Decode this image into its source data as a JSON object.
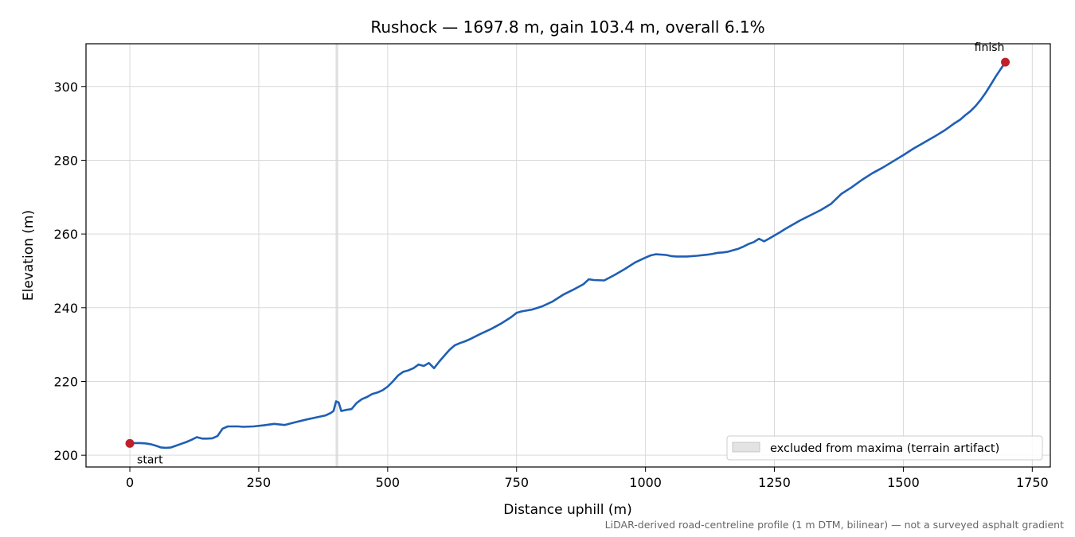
{
  "chart_data": {
    "type": "line",
    "title": "Rushock — 1697.8 m, gain 103.4 m, overall 6.1%",
    "xlabel": "Distance uphill (m)",
    "ylabel": "Elevation (m)",
    "xlim": [
      -85,
      1785
    ],
    "ylim": [
      196.8,
      311.6
    ],
    "xticks": [
      0,
      250,
      500,
      750,
      1000,
      1250,
      1500,
      1750
    ],
    "yticks": [
      200,
      220,
      240,
      260,
      280,
      300
    ],
    "grid": true,
    "line_color": "#1f5fb4",
    "marker_color": "#c0202a",
    "series": [
      {
        "x": [
          0,
          10,
          20,
          30,
          40,
          50,
          60,
          70,
          80,
          90,
          100,
          110,
          120,
          130,
          140,
          150,
          160,
          170,
          180,
          190,
          200,
          210,
          220,
          240,
          260,
          280,
          300,
          320,
          340,
          360,
          380,
          390,
          395,
          400,
          405,
          410,
          420,
          430,
          440,
          450,
          460,
          470,
          480,
          490,
          500,
          510,
          520,
          530,
          540,
          550,
          560,
          570,
          580,
          590,
          600,
          610,
          620,
          630,
          640,
          650,
          660,
          680,
          700,
          720,
          740,
          750,
          760,
          780,
          800,
          820,
          840,
          860,
          880,
          890,
          900,
          920,
          940,
          960,
          980,
          1000,
          1010,
          1020,
          1040,
          1050,
          1060,
          1080,
          1100,
          1120,
          1130,
          1140,
          1150,
          1160,
          1170,
          1180,
          1190,
          1200,
          1210,
          1220,
          1230,
          1240,
          1250,
          1260,
          1270,
          1280,
          1300,
          1320,
          1340,
          1360,
          1380,
          1400,
          1420,
          1440,
          1460,
          1480,
          1500,
          1520,
          1540,
          1560,
          1580,
          1600,
          1610,
          1620,
          1630,
          1640,
          1650,
          1660,
          1670,
          1680,
          1690,
          1697.8
        ],
        "y": [
          203.2,
          203.3,
          203.3,
          203.2,
          203.0,
          202.6,
          202.1,
          202.0,
          202.1,
          202.6,
          203.1,
          203.6,
          204.2,
          204.9,
          204.5,
          204.5,
          204.6,
          205.2,
          207.2,
          207.8,
          207.8,
          207.8,
          207.7,
          207.8,
          208.1,
          208.5,
          208.2,
          208.9,
          209.6,
          210.2,
          210.8,
          211.5,
          212.0,
          214.6,
          214.3,
          212.0,
          212.3,
          212.5,
          214.2,
          215.2,
          215.8,
          216.6,
          217.0,
          217.6,
          218.6,
          220.0,
          221.6,
          222.6,
          223.0,
          223.6,
          224.6,
          224.2,
          225.0,
          223.6,
          225.4,
          227.0,
          228.6,
          229.8,
          230.4,
          230.9,
          231.5,
          232.9,
          234.2,
          235.7,
          237.5,
          238.6,
          239.0,
          239.5,
          240.4,
          241.7,
          243.5,
          244.9,
          246.4,
          247.7,
          247.5,
          247.4,
          248.9,
          250.5,
          252.3,
          253.6,
          254.2,
          254.5,
          254.3,
          254.0,
          253.9,
          253.9,
          254.1,
          254.4,
          254.6,
          254.9,
          255.0,
          255.2,
          255.6,
          256.0,
          256.6,
          257.3,
          257.8,
          258.7,
          258.0,
          258.8,
          259.6,
          260.4,
          261.3,
          262.1,
          263.7,
          265.1,
          266.5,
          268.2,
          270.9,
          272.7,
          274.7,
          276.5,
          278.0,
          279.7,
          281.4,
          283.2,
          284.8,
          286.4,
          288.1,
          290.1,
          291.0,
          292.2,
          293.3,
          294.7,
          296.4,
          298.4,
          300.6,
          302.9,
          305.0,
          306.6
        ]
      }
    ],
    "annotations": [
      {
        "text": "start",
        "x": 0,
        "y": 203.2
      },
      {
        "text": "finish",
        "x": 1697.8,
        "y": 306.6
      }
    ],
    "excluded_band": {
      "x": [
        399,
        404
      ],
      "label": "excluded from maxima (terrain artifact)"
    },
    "legend": {
      "placement": "lower-right",
      "entries": [
        "excluded from maxima (terrain artifact)"
      ]
    },
    "footnote": "LiDAR-derived road-centreline profile (1 m DTM, bilinear) — not a surveyed asphalt gradient"
  }
}
